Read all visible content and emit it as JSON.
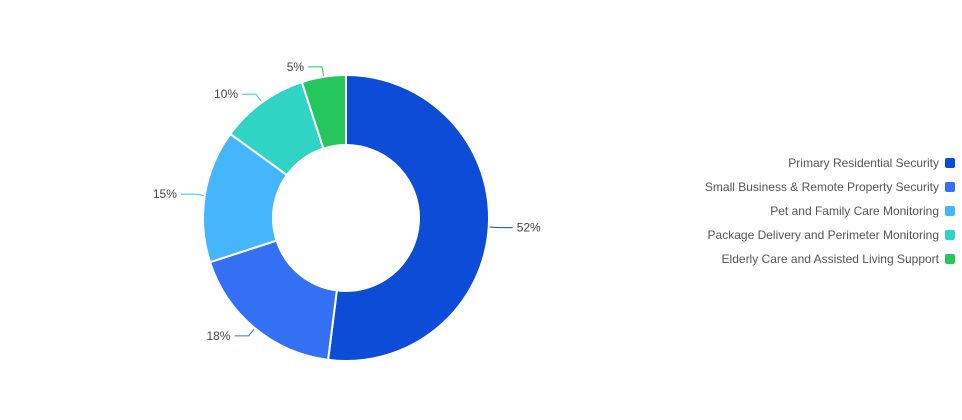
{
  "chart_data": {
    "type": "pie",
    "donut": true,
    "title": "",
    "categories": [
      "Primary Residential Security",
      "Small Business & Remote Property Security",
      "Pet and Family Care Monitoring",
      "Package Delivery and Perimeter Monitoring",
      "Elderly Care and Assisted Living Support"
    ],
    "values": [
      52,
      18,
      15,
      10,
      5
    ],
    "value_labels": [
      "52%",
      "18%",
      "15%",
      "10%",
      "5%"
    ],
    "colors": [
      "#0d4cd6",
      "#3370f4",
      "#45b6fc",
      "#2fd4c4",
      "#25c65c"
    ],
    "legend_position": "right"
  }
}
